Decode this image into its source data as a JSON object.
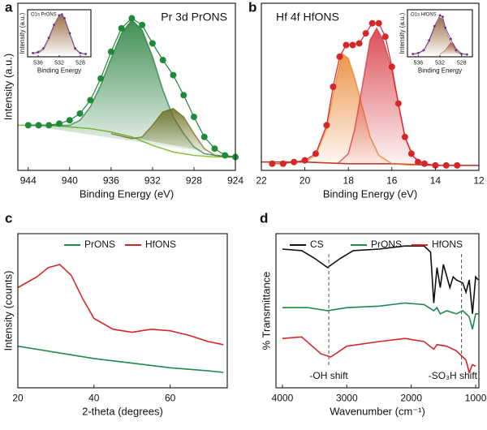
{
  "chart_data": [
    {
      "type": "line",
      "panel": "a",
      "title": "Pr 3d PrONS",
      "xlabel": "Binding Energy (eV)",
      "ylabel": "Intensity (a.u.)",
      "xlim": [
        945,
        924
      ],
      "xticks": [
        944,
        940,
        936,
        932,
        928,
        924
      ],
      "ylim": [
        0,
        100
      ],
      "series": [
        {
          "color": "#8cc63f",
          "x": [
            945,
            944,
            942,
            940,
            938,
            936,
            934,
            932,
            930,
            928,
            926,
            924
          ],
          "values": [
            27,
            27,
            27,
            26,
            25,
            23,
            20,
            15,
            11,
            9,
            8,
            8
          ]
        },
        {
          "color": "#1f7a35",
          "fill": true,
          "x": [
            944,
            942,
            940,
            939,
            938,
            937,
            936,
            935,
            934,
            933,
            932,
            931,
            930,
            929,
            928,
            927,
            926,
            924
          ],
          "values": [
            27,
            27,
            27,
            30,
            38,
            51,
            67,
            82,
            90,
            84,
            68,
            48,
            32,
            22,
            14,
            10,
            9,
            8
          ]
        },
        {
          "color": "#6b6b1f",
          "fill": true,
          "x": [
            936,
            934,
            933,
            932,
            931,
            930,
            929,
            928,
            927,
            926,
            925,
            924
          ],
          "values": [
            22,
            19,
            20,
            27,
            35,
            37,
            32,
            22,
            13,
            9,
            8,
            8
          ]
        },
        {
          "color": "#1e8a3a",
          "markers": true,
          "x": [
            944,
            943,
            942,
            941,
            940,
            939,
            938,
            937,
            936,
            935,
            934,
            933,
            932,
            931,
            930,
            929,
            928,
            927,
            926,
            925,
            924
          ],
          "values": [
            27,
            27,
            27,
            28,
            30,
            34,
            42,
            55,
            71,
            85,
            91,
            87,
            76,
            66,
            57,
            45,
            32,
            20,
            13,
            9,
            8
          ]
        }
      ],
      "inset": {
        "title": "O1s PrONS",
        "xlabel": "Binding Energy",
        "ylabel": "Intensity (a.u.)",
        "xlim": [
          538,
          526
        ],
        "xticks": [
          536,
          532,
          528
        ],
        "ylim": [
          0,
          100
        ],
        "series": [
          {
            "color": "#8b5a2b",
            "fill": true,
            "x": [
              537,
              536,
              535,
              534,
              533,
              532,
              531.5,
              531,
              530,
              529,
              528,
              527
            ],
            "values": [
              6,
              8,
              15,
              36,
              64,
              85,
              88,
              80,
              48,
              16,
              7,
              5
            ]
          },
          {
            "color": "#6a2c91",
            "markers": true,
            "x": [
              537,
              536,
              535,
              534,
              533,
              532,
              531.5,
              531,
              530,
              529,
              528,
              527
            ],
            "values": [
              8,
              10,
              18,
              40,
              68,
              88,
              90,
              82,
              50,
              18,
              8,
              6
            ]
          }
        ]
      }
    },
    {
      "type": "line",
      "panel": "b",
      "title": "Hf 4f HfONS",
      "xlabel": "Binding Energy (eV)",
      "xlim": [
        22,
        12
      ],
      "xticks": [
        22,
        20,
        18,
        16,
        14,
        12
      ],
      "ylim": [
        0,
        100
      ],
      "series": [
        {
          "color": "#c0392b",
          "x": [
            22,
            20,
            18,
            16,
            14,
            12
          ],
          "values": [
            5,
            5,
            4,
            4,
            3,
            3
          ]
        },
        {
          "color": "#e8822a",
          "fill": true,
          "x": [
            20,
            19.5,
            19,
            18.7,
            18.3,
            18,
            17.7,
            17.3,
            17,
            16.6,
            16,
            15
          ],
          "values": [
            5,
            9,
            25,
            45,
            70,
            67,
            55,
            35,
            20,
            9,
            4,
            3
          ]
        },
        {
          "color": "#d6303a",
          "fill": true,
          "x": [
            18.5,
            18,
            17.7,
            17.3,
            17,
            16.7,
            16.4,
            16,
            15.7,
            15.4,
            15,
            14.5,
            14
          ],
          "values": [
            4,
            10,
            25,
            55,
            78,
            85,
            78,
            60,
            40,
            20,
            8,
            4,
            3
          ]
        },
        {
          "color": "#d62728",
          "markers": true,
          "x": [
            21.5,
            21,
            20.5,
            20,
            19.5,
            19,
            18.7,
            18.4,
            18.1,
            17.8,
            17.5,
            17.2,
            16.9,
            16.6,
            16.3,
            16,
            15.7,
            15.4,
            15.1,
            14.8,
            14.5,
            14,
            13.5,
            13
          ],
          "values": [
            4,
            4,
            5,
            6,
            10,
            27,
            50,
            68,
            75,
            75,
            76,
            82,
            88,
            88,
            80,
            62,
            40,
            20,
            10,
            5,
            4,
            3,
            3,
            3
          ]
        }
      ],
      "inset": {
        "title": "O1s HfONS",
        "xlabel": "Binding Energy",
        "ylabel": "Intensity (a.u.)",
        "xlim": [
          538,
          526
        ],
        "xticks": [
          536,
          532,
          528
        ],
        "ylim": [
          0,
          100
        ],
        "series": [
          {
            "color": "#8b5a2b",
            "fill": true,
            "x": [
              537,
              536,
              535,
              534,
              533,
              532,
              531.5,
              531,
              530,
              529,
              528
            ],
            "values": [
              5,
              7,
              13,
              33,
              62,
              84,
              80,
              58,
              30,
              10,
              5
            ]
          },
          {
            "color": "#a0522d",
            "fill": true,
            "x": [
              532,
              531,
              530,
              529.5,
              529,
              528,
              527
            ],
            "values": [
              5,
              14,
              30,
              28,
              18,
              7,
              5
            ]
          },
          {
            "color": "#6a2c91",
            "markers": true,
            "x": [
              537,
              536,
              535,
              534,
              533,
              532,
              531.5,
              531,
              530,
              529,
              528,
              527
            ],
            "values": [
              6,
              8,
              14,
              35,
              65,
              88,
              85,
              62,
              38,
              14,
              6,
              5
            ]
          }
        ]
      }
    },
    {
      "type": "line",
      "panel": "c",
      "xlabel": "2-theta (degrees)",
      "ylabel": "Intensity (counts)",
      "xlim": [
        20,
        75
      ],
      "xticks": [
        20,
        40,
        60
      ],
      "ylim": [
        0,
        100
      ],
      "series": [
        {
          "name": "PrONS",
          "color": "#1e8a4a",
          "x": [
            20,
            25,
            30,
            40,
            50,
            60,
            70,
            74
          ],
          "values": [
            27,
            25,
            23,
            19,
            16,
            13,
            11,
            10
          ]
        },
        {
          "name": "HfONS",
          "color": "#d62728",
          "x": [
            20,
            25,
            28,
            31,
            34,
            37,
            40,
            45,
            50,
            55,
            60,
            65,
            70,
            74
          ],
          "values": [
            65,
            72,
            78,
            80,
            73,
            58,
            45,
            38,
            36,
            38,
            37,
            34,
            30,
            28
          ]
        }
      ]
    },
    {
      "type": "line",
      "panel": "d",
      "xlabel": "Wavenumber (cm⁻¹)",
      "ylabel": "% Transmittance",
      "xlim": [
        4100,
        950
      ],
      "xticks": [
        4000,
        3000,
        2000,
        1000
      ],
      "ylim": [
        0,
        100
      ],
      "annotations": [
        {
          "text": "-OH shift",
          "x": 3280
        },
        {
          "text": "-SO₃H shift",
          "x": 1220
        }
      ],
      "series": [
        {
          "name": "CS",
          "color": "#111111",
          "x": [
            4000,
            3700,
            3500,
            3300,
            3100,
            2900,
            2500,
            2100,
            1800,
            1700,
            1650,
            1600,
            1550,
            1500,
            1400,
            1350,
            1300,
            1200,
            1150,
            1100,
            1050,
            1000,
            960
          ],
          "values": [
            90,
            89,
            84,
            78,
            84,
            89,
            90,
            92,
            92,
            88,
            55,
            78,
            65,
            80,
            65,
            72,
            70,
            68,
            62,
            70,
            48,
            72,
            70
          ]
        },
        {
          "name": "PrONS",
          "color": "#1e8a4a",
          "x": [
            4000,
            3600,
            3300,
            3000,
            2500,
            2100,
            1800,
            1650,
            1600,
            1550,
            1450,
            1300,
            1200,
            1100,
            1050,
            1000,
            960
          ],
          "values": [
            52,
            52,
            50,
            52,
            53,
            55,
            54,
            50,
            52,
            48,
            50,
            48,
            50,
            46,
            38,
            48,
            48
          ]
        },
        {
          "name": "HfONS",
          "color": "#d62728",
          "x": [
            4000,
            3700,
            3400,
            3250,
            3000,
            2500,
            2100,
            1800,
            1650,
            1600,
            1450,
            1300,
            1200,
            1150,
            1100,
            1050,
            1000
          ],
          "values": [
            32,
            33,
            22,
            20,
            27,
            30,
            32,
            30,
            25,
            28,
            27,
            24,
            20,
            18,
            10,
            15,
            14
          ]
        }
      ]
    }
  ]
}
